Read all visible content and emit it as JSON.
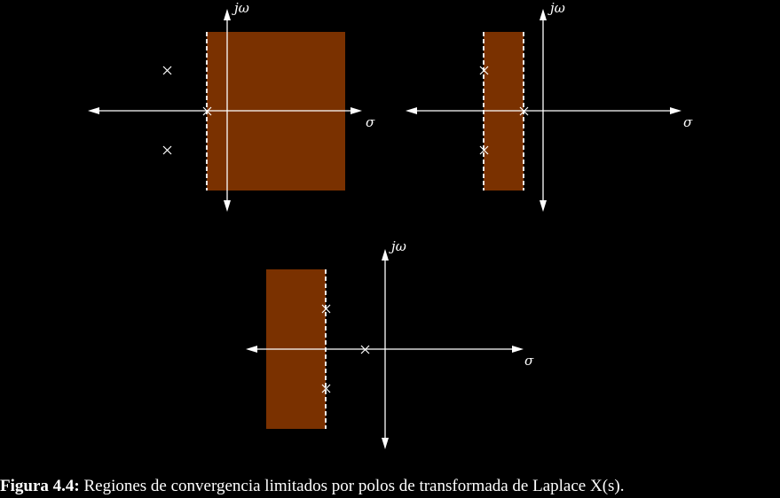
{
  "colors": {
    "roc": "#7a3100",
    "axis": "#ffffff",
    "background": "#000000"
  },
  "axis_labels": {
    "imag": "jω",
    "real": "σ"
  },
  "panels": [
    {
      "id": "panel-right-sided",
      "roc_type": "right-sided",
      "poles": 3
    },
    {
      "id": "panel-two-sided-strip",
      "roc_type": "strip",
      "poles": 3
    },
    {
      "id": "panel-left-sided-strip",
      "roc_type": "strip",
      "poles": 3
    }
  ],
  "caption": {
    "label": "Figura 4.4:",
    "text": " Regiones de convergencia limitados por polos de transformada de Laplace X(s)."
  }
}
